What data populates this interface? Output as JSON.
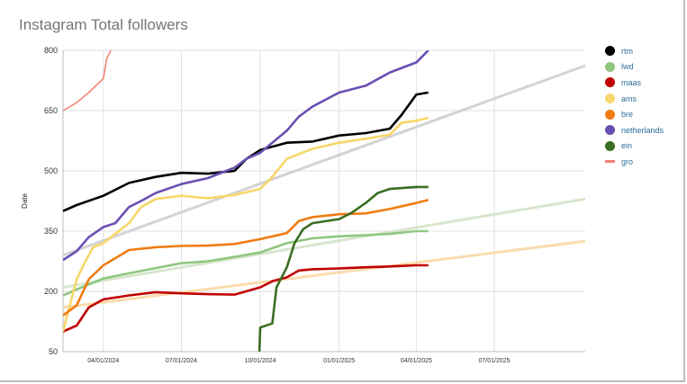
{
  "chart_data": {
    "type": "line",
    "title": "Instagram Total followers",
    "ylabel": "Date",
    "xlabel": "",
    "ylim": [
      50,
      800
    ],
    "y_ticks": [
      50,
      200,
      350,
      500,
      650,
      800
    ],
    "xlim": [
      "2024-02-14",
      "2025-10-15"
    ],
    "x_ticks": [
      {
        "date": "2024-04-01",
        "label": "04/01/2024"
      },
      {
        "date": "2024-07-01",
        "label": "07/01/2024"
      },
      {
        "date": "2024-10-01",
        "label": "10/01/2024"
      },
      {
        "date": "2025-01-01",
        "label": "01/01/2025"
      },
      {
        "date": "2025-04-01",
        "label": "04/01/2025"
      },
      {
        "date": "2025-07-01",
        "label": "07/01/2025"
      }
    ],
    "grid": true,
    "legend_position": "right",
    "series": [
      {
        "name": "rtm",
        "color": "#000000",
        "x": [
          "2024-02-14",
          "2024-03-01",
          "2024-04-01",
          "2024-05-01",
          "2024-06-01",
          "2024-07-01",
          "2024-08-01",
          "2024-09-01",
          "2024-09-15",
          "2024-10-01",
          "2024-11-01",
          "2024-12-01",
          "2025-01-01",
          "2025-02-01",
          "2025-03-01",
          "2025-03-15",
          "2025-04-01",
          "2025-04-15"
        ],
        "values": [
          400,
          415,
          438,
          470,
          485,
          495,
          493,
          500,
          530,
          552,
          570,
          573,
          588,
          594,
          605,
          640,
          690,
          695
        ]
      },
      {
        "name": "lwd",
        "color": "#8fc77f",
        "x": [
          "2024-02-14",
          "2024-03-01",
          "2024-04-01",
          "2024-05-01",
          "2024-06-01",
          "2024-07-01",
          "2024-08-01",
          "2024-09-01",
          "2024-10-01",
          "2024-11-01",
          "2024-12-01",
          "2025-01-01",
          "2025-02-01",
          "2025-03-01",
          "2025-04-01",
          "2025-04-15"
        ],
        "values": [
          190,
          205,
          232,
          245,
          258,
          270,
          275,
          286,
          297,
          320,
          332,
          337,
          340,
          343,
          350,
          350
        ]
      },
      {
        "name": "maas",
        "color": "#c00000",
        "x": [
          "2024-02-14",
          "2024-03-01",
          "2024-03-15",
          "2024-04-01",
          "2024-05-01",
          "2024-06-01",
          "2024-07-01",
          "2024-08-01",
          "2024-09-01",
          "2024-10-01",
          "2024-10-15",
          "2024-11-01",
          "2024-11-15",
          "2024-12-01",
          "2025-01-01",
          "2025-02-01",
          "2025-03-01",
          "2025-04-01",
          "2025-04-15"
        ],
        "values": [
          100,
          115,
          160,
          180,
          190,
          198,
          195,
          193,
          192,
          210,
          225,
          235,
          252,
          255,
          257,
          260,
          262,
          265,
          265
        ]
      },
      {
        "name": "ams",
        "color": "#f7d66a",
        "x": [
          "2024-02-14",
          "2024-02-20",
          "2024-03-01",
          "2024-03-10",
          "2024-03-20",
          "2024-04-01",
          "2024-05-01",
          "2024-05-15",
          "2024-06-01",
          "2024-07-01",
          "2024-08-01",
          "2024-09-01",
          "2024-10-01",
          "2024-10-15",
          "2024-11-01",
          "2024-12-01",
          "2025-01-01",
          "2025-02-01",
          "2025-03-01",
          "2025-03-15",
          "2025-04-01",
          "2025-04-15"
        ],
        "values": [
          100,
          150,
          230,
          270,
          310,
          320,
          370,
          410,
          430,
          438,
          432,
          440,
          455,
          485,
          530,
          555,
          570,
          580,
          590,
          620,
          625,
          632
        ]
      },
      {
        "name": "bre",
        "color": "#f07c12",
        "x": [
          "2024-02-14",
          "2024-03-01",
          "2024-03-15",
          "2024-04-01",
          "2024-05-01",
          "2024-06-01",
          "2024-07-01",
          "2024-08-01",
          "2024-09-01",
          "2024-10-01",
          "2024-11-01",
          "2024-11-15",
          "2024-12-01",
          "2025-01-01",
          "2025-02-01",
          "2025-03-01",
          "2025-04-01",
          "2025-04-15"
        ],
        "values": [
          140,
          165,
          230,
          265,
          303,
          310,
          313,
          314,
          318,
          330,
          345,
          375,
          385,
          392,
          394,
          405,
          420,
          428
        ]
      },
      {
        "name": "netherlands",
        "color": "#6a4fb3",
        "x": [
          "2024-02-14",
          "2024-03-01",
          "2024-03-15",
          "2024-04-01",
          "2024-04-15",
          "2024-05-01",
          "2024-05-15",
          "2024-06-01",
          "2024-07-01",
          "2024-08-01",
          "2024-09-01",
          "2024-09-15",
          "2024-10-01",
          "2024-11-01",
          "2024-11-15",
          "2024-12-01",
          "2025-01-01",
          "2025-02-01",
          "2025-03-01",
          "2025-04-01",
          "2025-04-15"
        ],
        "values": [
          278,
          300,
          335,
          360,
          370,
          410,
          425,
          445,
          467,
          482,
          508,
          530,
          545,
          600,
          635,
          660,
          695,
          712,
          745,
          770,
          800
        ]
      },
      {
        "name": "ein",
        "color": "#3a6e22",
        "x": [
          "2024-09-30",
          "2024-10-01",
          "2024-10-15",
          "2024-10-20",
          "2024-11-01",
          "2024-11-10",
          "2024-11-20",
          "2024-12-01",
          "2025-01-01",
          "2025-01-15",
          "2025-02-01",
          "2025-02-15",
          "2025-03-01",
          "2025-04-01",
          "2025-04-15"
        ],
        "values": [
          50,
          110,
          120,
          210,
          260,
          320,
          355,
          370,
          380,
          395,
          420,
          445,
          455,
          460,
          460
        ]
      },
      {
        "name": "gro",
        "color": "#f08070",
        "x": [
          "2024-02-14",
          "2024-03-01",
          "2024-03-15",
          "2024-04-01",
          "2024-04-05",
          "2024-04-10"
        ],
        "values": [
          650,
          670,
          695,
          730,
          780,
          800
        ]
      }
    ],
    "trendlines": [
      {
        "of": "netherlands",
        "color": "#cfcfcf",
        "start": {
          "x": "2024-02-14",
          "y": 290
        },
        "end": {
          "x": "2025-10-15",
          "y": 762
        }
      },
      {
        "of": "lwd",
        "color": "#d4e4c8",
        "start": {
          "x": "2024-02-14",
          "y": 210
        },
        "end": {
          "x": "2025-10-15",
          "y": 430
        }
      },
      {
        "of": "maas",
        "color": "#fbd9a6",
        "start": {
          "x": "2024-02-14",
          "y": 160
        },
        "end": {
          "x": "2025-10-15",
          "y": 325
        }
      }
    ]
  }
}
